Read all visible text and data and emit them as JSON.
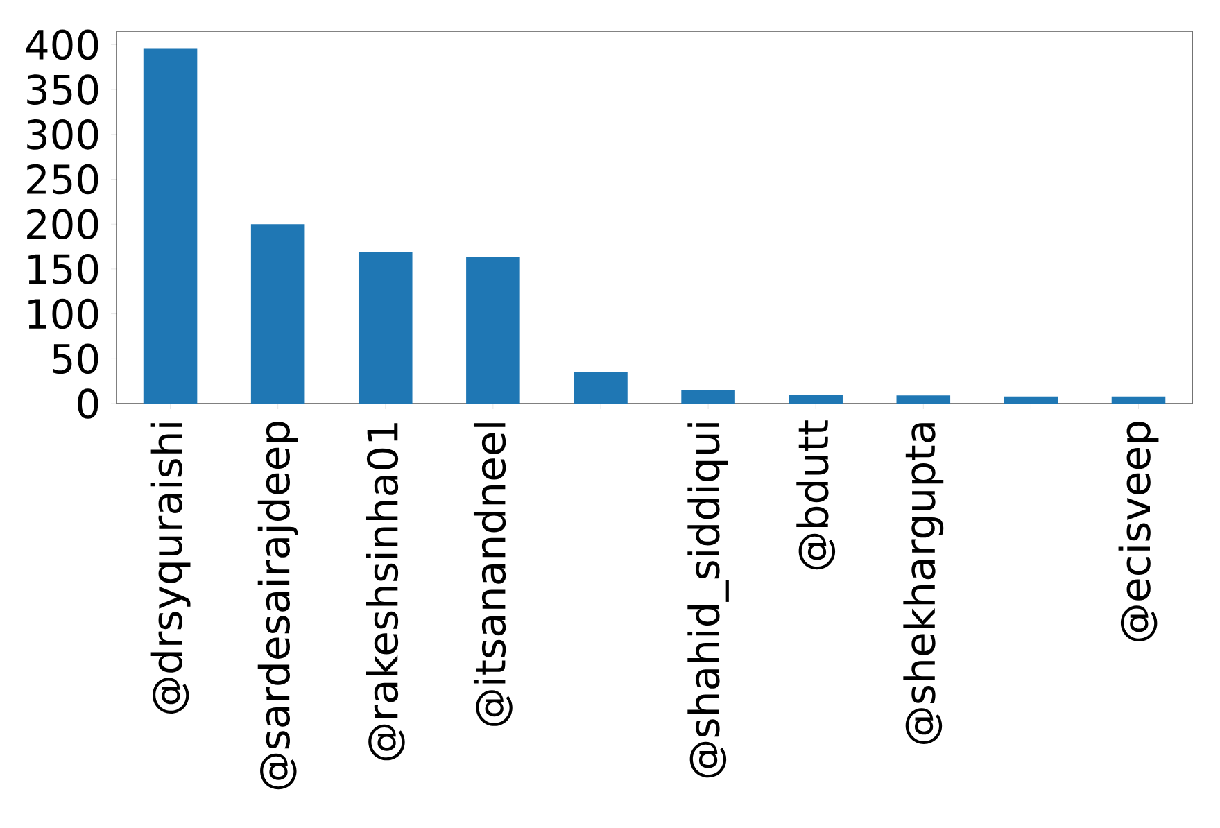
{
  "chart_data": {
    "type": "bar",
    "categories": [
      "@drsyquraishi",
      "@sardesairajdeep",
      "@rakeshsinha01",
      "@itsanandneel",
      null,
      "@shahid_siddiqui",
      "@bdutt",
      "@shekhargupta",
      null,
      "@ecisveep"
    ],
    "values": [
      396,
      200,
      169,
      163,
      35,
      15,
      10,
      9,
      8,
      8
    ],
    "color": "#1f77b4",
    "ylim": [
      0,
      415
    ],
    "yticks": [
      0,
      50,
      100,
      150,
      200,
      250,
      300,
      350,
      400
    ],
    "grid": false
  }
}
